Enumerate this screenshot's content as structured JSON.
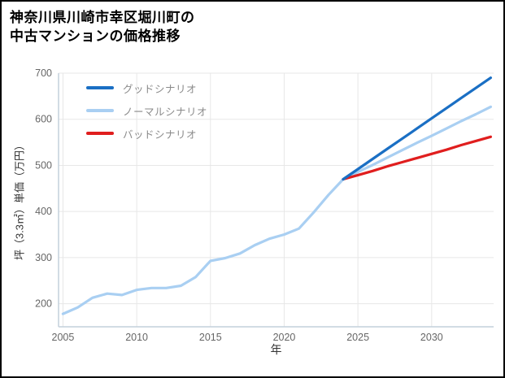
{
  "title": {
    "line1": "神奈川県川崎市幸区堀川町の",
    "line2": "中古マンションの価格推移"
  },
  "chart_data": {
    "type": "line",
    "title": "神奈川県川崎市幸区堀川町の中古マンションの価格推移",
    "xlabel": "年",
    "ylabel": "坪（3.3㎡）単価（万円）",
    "xlim": [
      2004.7,
      2034.2
    ],
    "ylim": [
      150,
      700
    ],
    "xticks": [
      2005,
      2010,
      2015,
      2020,
      2025,
      2030
    ],
    "yticks": [
      200,
      300,
      400,
      500,
      600,
      700
    ],
    "grid": true,
    "legend_position": "top-left-inside",
    "colors": {
      "grid": "#e7e7e7",
      "axis": "#c4d0dc",
      "tick_text": "#666666",
      "axis_label_text": "#333333",
      "legend_text": "#8a8a8a",
      "background": "#ffffff",
      "border": "#000000"
    },
    "series": [
      {
        "name": "ノーマルシナリオ",
        "color": "#a9cff2",
        "x": [
          2005,
          2006,
          2007,
          2008,
          2009,
          2010,
          2011,
          2012,
          2013,
          2014,
          2015,
          2016,
          2017,
          2018,
          2019,
          2020,
          2021,
          2022,
          2023,
          2024,
          2025,
          2026,
          2027,
          2028,
          2029,
          2030,
          2031,
          2032,
          2033,
          2034
        ],
        "y": [
          178,
          192,
          213,
          222,
          219,
          230,
          234,
          234,
          239,
          258,
          293,
          299,
          309,
          327,
          341,
          350,
          363,
          398,
          436,
          470,
          486,
          501,
          517,
          533,
          549,
          564,
          580,
          596,
          611,
          627
        ]
      },
      {
        "name": "バッドシナリオ",
        "color": "#e01e1e",
        "x": [
          2024,
          2025,
          2026,
          2027,
          2028,
          2029,
          2030,
          2031,
          2032,
          2033,
          2034
        ],
        "y": [
          470,
          479,
          488,
          498,
          507,
          516,
          525,
          534,
          544,
          553,
          562
        ]
      },
      {
        "name": "グッドシナリオ",
        "color": "#1a6fc4",
        "x": [
          2024,
          2025,
          2026,
          2027,
          2028,
          2029,
          2030,
          2031,
          2032,
          2033,
          2034
        ],
        "y": [
          470,
          492,
          514,
          536,
          558,
          580,
          602,
          624,
          646,
          668,
          690
        ]
      }
    ],
    "legend": [
      {
        "label": "グッドシナリオ",
        "color": "#1a6fc4"
      },
      {
        "label": "ノーマルシナリオ",
        "color": "#a9cff2"
      },
      {
        "label": "バッドシナリオ",
        "color": "#e01e1e"
      }
    ]
  }
}
